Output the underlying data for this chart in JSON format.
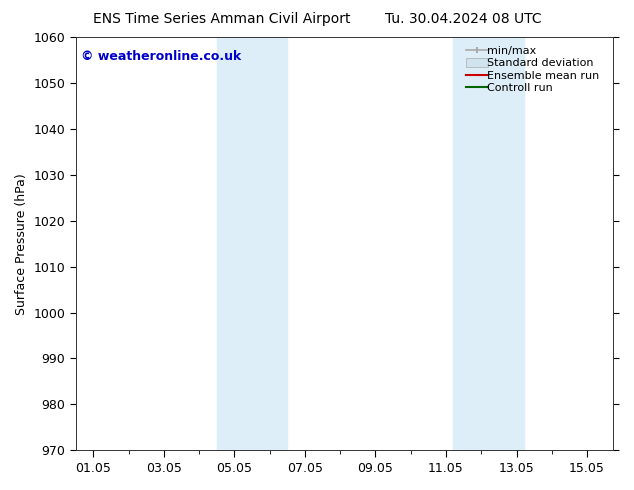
{
  "title_left": "ENS Time Series Amman Civil Airport",
  "title_right": "Tu. 30.04.2024 08 UTC",
  "ylabel": "Surface Pressure (hPa)",
  "ylim": [
    970,
    1060
  ],
  "yticks": [
    970,
    980,
    990,
    1000,
    1010,
    1020,
    1030,
    1040,
    1050,
    1060
  ],
  "xtick_labels": [
    "01.05",
    "03.05",
    "05.05",
    "07.05",
    "09.05",
    "11.05",
    "13.05",
    "15.05"
  ],
  "xtick_positions": [
    0,
    2,
    4,
    6,
    8,
    10,
    12,
    14
  ],
  "xlim": [
    -0.5,
    14.75
  ],
  "shaded_bands": [
    {
      "x_start": 3.5,
      "x_end": 5.5
    },
    {
      "x_start": 10.2,
      "x_end": 12.2
    }
  ],
  "shaded_color": "#ddeef8",
  "watermark_text": "© weatheronline.co.uk",
  "watermark_color": "#0000cc",
  "bg_color": "#ffffff",
  "title_fontsize": 10,
  "ylabel_fontsize": 9,
  "tick_fontsize": 9,
  "legend_fontsize": 8,
  "minmax_color": "#aaaaaa",
  "std_color": "#d0e4f0",
  "ensemble_color": "#cc0000",
  "control_color": "#006600"
}
